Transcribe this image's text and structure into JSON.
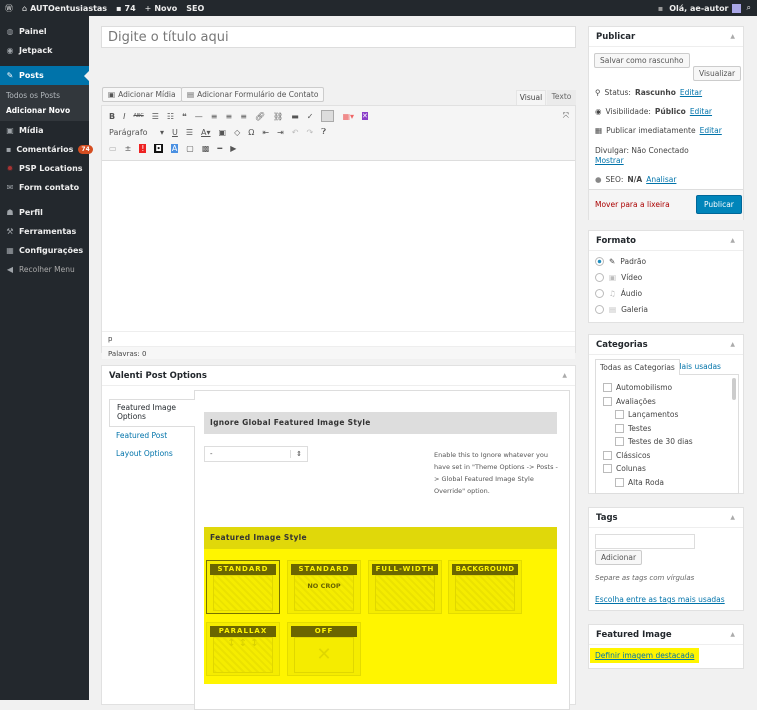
{
  "adminbar": {
    "site": "AUTOentusiastas",
    "comments": "74",
    "new": "Novo",
    "seo": "SEO",
    "greeting": "Olá, ae-autor"
  },
  "sidebar": {
    "items": [
      {
        "label": "Painel",
        "icon": "dashboard-icon"
      },
      {
        "label": "Jetpack",
        "icon": "jetpack-icon"
      },
      {
        "label": "Posts",
        "icon": "pin-icon"
      },
      {
        "label": "Mídia",
        "icon": "media-icon"
      },
      {
        "label": "Comentários",
        "icon": "comment-icon",
        "badge": "74"
      },
      {
        "label": "PSP Locations",
        "icon": "location-icon"
      },
      {
        "label": "Form contato",
        "icon": "mail-icon"
      },
      {
        "label": "Perfil",
        "icon": "user-icon"
      },
      {
        "label": "Ferramentas",
        "icon": "wrench-icon"
      },
      {
        "label": "Configurações",
        "icon": "settings-icon"
      },
      {
        "label": "Recolher Menu",
        "icon": "collapse-icon"
      }
    ],
    "submenu": [
      "Todos os Posts",
      "Adicionar Novo"
    ]
  },
  "editor": {
    "title_placeholder": "Digite o título aqui",
    "add_media": "Adicionar Mídia",
    "add_form": "Adicionar Formulário de Contato",
    "tab_visual": "Visual",
    "tab_text": "Texto",
    "format_select": "Parágrafo",
    "path": "p",
    "word_count": "Palavras: 0"
  },
  "valenti": {
    "title": "Valenti Post Options",
    "tabs": [
      "Featured Image Options",
      "Featured Post",
      "Layout Options"
    ],
    "ignore_header": "Ignore Global Featured Image Style",
    "ignore_value": "-",
    "ignore_desc": "Enable this to Ignore whatever you have set in \"Theme Options -> Posts -> Global Featured Image Style Override\" option.",
    "style_header": "Featured Image Style",
    "styles": [
      "STANDARD",
      "STANDARD",
      "FULL-WIDTH",
      "BACKGROUND",
      "PARALLAX",
      "OFF"
    ],
    "nocrop": "NO CROP",
    "selected_style": 0,
    "highlight": "#fff500"
  },
  "publish": {
    "title": "Publicar",
    "save_draft": "Salvar como rascunho",
    "preview": "Visualizar",
    "status_label": "Status:",
    "status": "Rascunho",
    "visibility_label": "Visibilidade:",
    "visibility": "Público",
    "schedule": "Publicar imediatamente",
    "edit": "Editar",
    "share": "Divulgar: Não Conectado",
    "show": "Mostrar",
    "seo_label": "SEO:",
    "seo": "N/A",
    "analyze": "Analisar",
    "trash": "Mover para a lixeira",
    "publish": "Publicar"
  },
  "format": {
    "title": "Formato",
    "options": [
      "Padrão",
      "Vídeo",
      "Áudio",
      "Galeria"
    ],
    "selected": 0
  },
  "categories": {
    "title": "Categorias",
    "tab_all": "Todas as Categorias",
    "tab_used": "Mais usadas",
    "items": [
      {
        "label": "Automobilismo",
        "level": 0
      },
      {
        "label": "Avaliações",
        "level": 0
      },
      {
        "label": "Lançamentos",
        "level": 1
      },
      {
        "label": "Testes",
        "level": 1
      },
      {
        "label": "Testes de 30 dias",
        "level": 1
      },
      {
        "label": "Clássicos",
        "level": 0
      },
      {
        "label": "Colunas",
        "level": 0
      },
      {
        "label": "Alta Roda",
        "level": 1
      }
    ]
  },
  "tags": {
    "title": "Tags",
    "add": "Adicionar",
    "hint": "Separe as tags com vírgulas",
    "choose": "Escolha entre as tags mais usadas"
  },
  "featured": {
    "title": "Featured Image",
    "set": "Definir imagem destacada"
  }
}
